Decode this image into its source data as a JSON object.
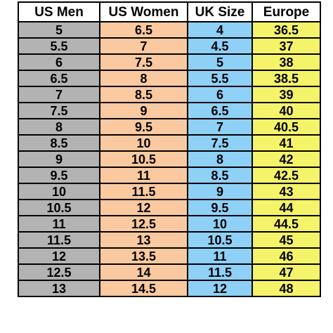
{
  "table": {
    "headers": [
      "US Men",
      "US Women",
      "UK Size",
      "Europe"
    ],
    "rows": [
      [
        "5",
        "6.5",
        "4",
        "36.5"
      ],
      [
        "5.5",
        "7",
        "4.5",
        "37"
      ],
      [
        "6",
        "7.5",
        "5",
        "38"
      ],
      [
        "6.5",
        "8",
        "5.5",
        "38.5"
      ],
      [
        "7",
        "8.5",
        "6",
        "39"
      ],
      [
        "7.5",
        "9",
        "6.5",
        "40"
      ],
      [
        "8",
        "9.5",
        "7",
        "40.5"
      ],
      [
        "8.5",
        "10",
        "7.5",
        "41"
      ],
      [
        "9",
        "10.5",
        "8",
        "42"
      ],
      [
        "9.5",
        "11",
        "8.5",
        "42.5"
      ],
      [
        "10",
        "11.5",
        "9",
        "43"
      ],
      [
        "10.5",
        "12",
        "9.5",
        "44"
      ],
      [
        "11",
        "12.5",
        "10",
        "44.5"
      ],
      [
        "11.5",
        "13",
        "10.5",
        "45"
      ],
      [
        "12",
        "13.5",
        "11",
        "46"
      ],
      [
        "12.5",
        "14",
        "11.5",
        "47"
      ],
      [
        "13",
        "14.5",
        "12",
        "48"
      ]
    ],
    "column_colors": [
      "#b3b3b3",
      "#fbc99f",
      "#8fd0f7",
      "#f4f36a"
    ]
  }
}
